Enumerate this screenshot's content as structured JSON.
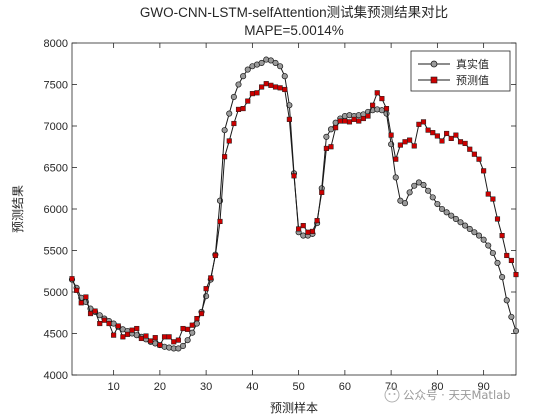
{
  "chart_data": {
    "type": "line",
    "title": "GWO-CNN-LSTM-selfAttention测试集预测结果对比",
    "subtitle": "MAPE=5.0014%",
    "xlabel": "预测样本",
    "ylabel": "预测结果",
    "xlim": [
      1,
      97
    ],
    "ylim": [
      4000,
      8000
    ],
    "xticks": [
      10,
      20,
      30,
      40,
      50,
      60,
      70,
      80,
      90
    ],
    "yticks": [
      4000,
      4500,
      5000,
      5500,
      6000,
      6500,
      7000,
      7500,
      8000
    ],
    "grid": false,
    "legend_position": "top-right",
    "x": [
      1,
      2,
      3,
      4,
      5,
      6,
      7,
      8,
      9,
      10,
      11,
      12,
      13,
      14,
      15,
      16,
      17,
      18,
      19,
      20,
      21,
      22,
      23,
      24,
      25,
      26,
      27,
      28,
      29,
      30,
      31,
      32,
      33,
      34,
      35,
      36,
      37,
      38,
      39,
      40,
      41,
      42,
      43,
      44,
      45,
      46,
      47,
      48,
      49,
      50,
      51,
      52,
      53,
      54,
      55,
      56,
      57,
      58,
      59,
      60,
      61,
      62,
      63,
      64,
      65,
      66,
      67,
      68,
      69,
      70,
      71,
      72,
      73,
      74,
      75,
      76,
      77,
      78,
      79,
      80,
      81,
      82,
      83,
      84,
      85,
      86,
      87,
      88,
      89,
      90,
      91,
      92,
      93,
      94,
      95,
      96,
      97
    ],
    "series": [
      {
        "name": "真实值",
        "color": "#1a1a1a",
        "marker": "circle",
        "marker_fill": "#9a9a9a",
        "values": [
          5150,
          5050,
          4930,
          4880,
          4800,
          4760,
          4720,
          4680,
          4650,
          4620,
          4580,
          4550,
          4530,
          4500,
          4480,
          4460,
          4430,
          4400,
          4380,
          4360,
          4340,
          4330,
          4320,
          4320,
          4350,
          4420,
          4510,
          4620,
          4760,
          4950,
          5150,
          5450,
          6100,
          6950,
          7150,
          7350,
          7500,
          7600,
          7680,
          7720,
          7740,
          7760,
          7800,
          7790,
          7760,
          7720,
          7600,
          7250,
          6430,
          5720,
          5680,
          5680,
          5700,
          5830,
          6250,
          6870,
          6960,
          7040,
          7090,
          7120,
          7130,
          7120,
          7130,
          7140,
          7170,
          7190,
          7200,
          7190,
          7150,
          6780,
          6380,
          6100,
          6070,
          6200,
          6280,
          6320,
          6290,
          6220,
          6140,
          6060,
          6000,
          5960,
          5920,
          5880,
          5840,
          5800,
          5760,
          5720,
          5680,
          5630,
          5560,
          5470,
          5350,
          5180,
          4900,
          4700,
          4530
        ]
      },
      {
        "name": "预测值",
        "color": "#1a1a1a",
        "marker": "square",
        "marker_fill": "#cc0000",
        "values": [
          5160,
          5020,
          4870,
          4940,
          4740,
          4770,
          4620,
          4660,
          4620,
          4480,
          4590,
          4460,
          4490,
          4540,
          4560,
          4440,
          4470,
          4410,
          4450,
          4360,
          4460,
          4460,
          4400,
          4420,
          4560,
          4550,
          4600,
          4680,
          4740,
          5040,
          5170,
          5440,
          5850,
          6630,
          6820,
          7030,
          7200,
          7210,
          7300,
          7390,
          7400,
          7470,
          7510,
          7490,
          7470,
          7460,
          7440,
          7080,
          6400,
          5760,
          5800,
          5720,
          5730,
          5860,
          6200,
          6730,
          6750,
          6980,
          7060,
          7060,
          7050,
          7080,
          7060,
          7090,
          7120,
          7250,
          7400,
          7330,
          7210,
          6890,
          6600,
          6770,
          6810,
          6830,
          6760,
          7020,
          7050,
          6950,
          6920,
          6880,
          6820,
          6910,
          6850,
          6890,
          6810,
          6790,
          6720,
          6660,
          6600,
          6460,
          6180,
          6120,
          5880,
          5680,
          5440,
          5380,
          5210
        ]
      }
    ],
    "watermark": "公众号 · 天天Matlab"
  }
}
